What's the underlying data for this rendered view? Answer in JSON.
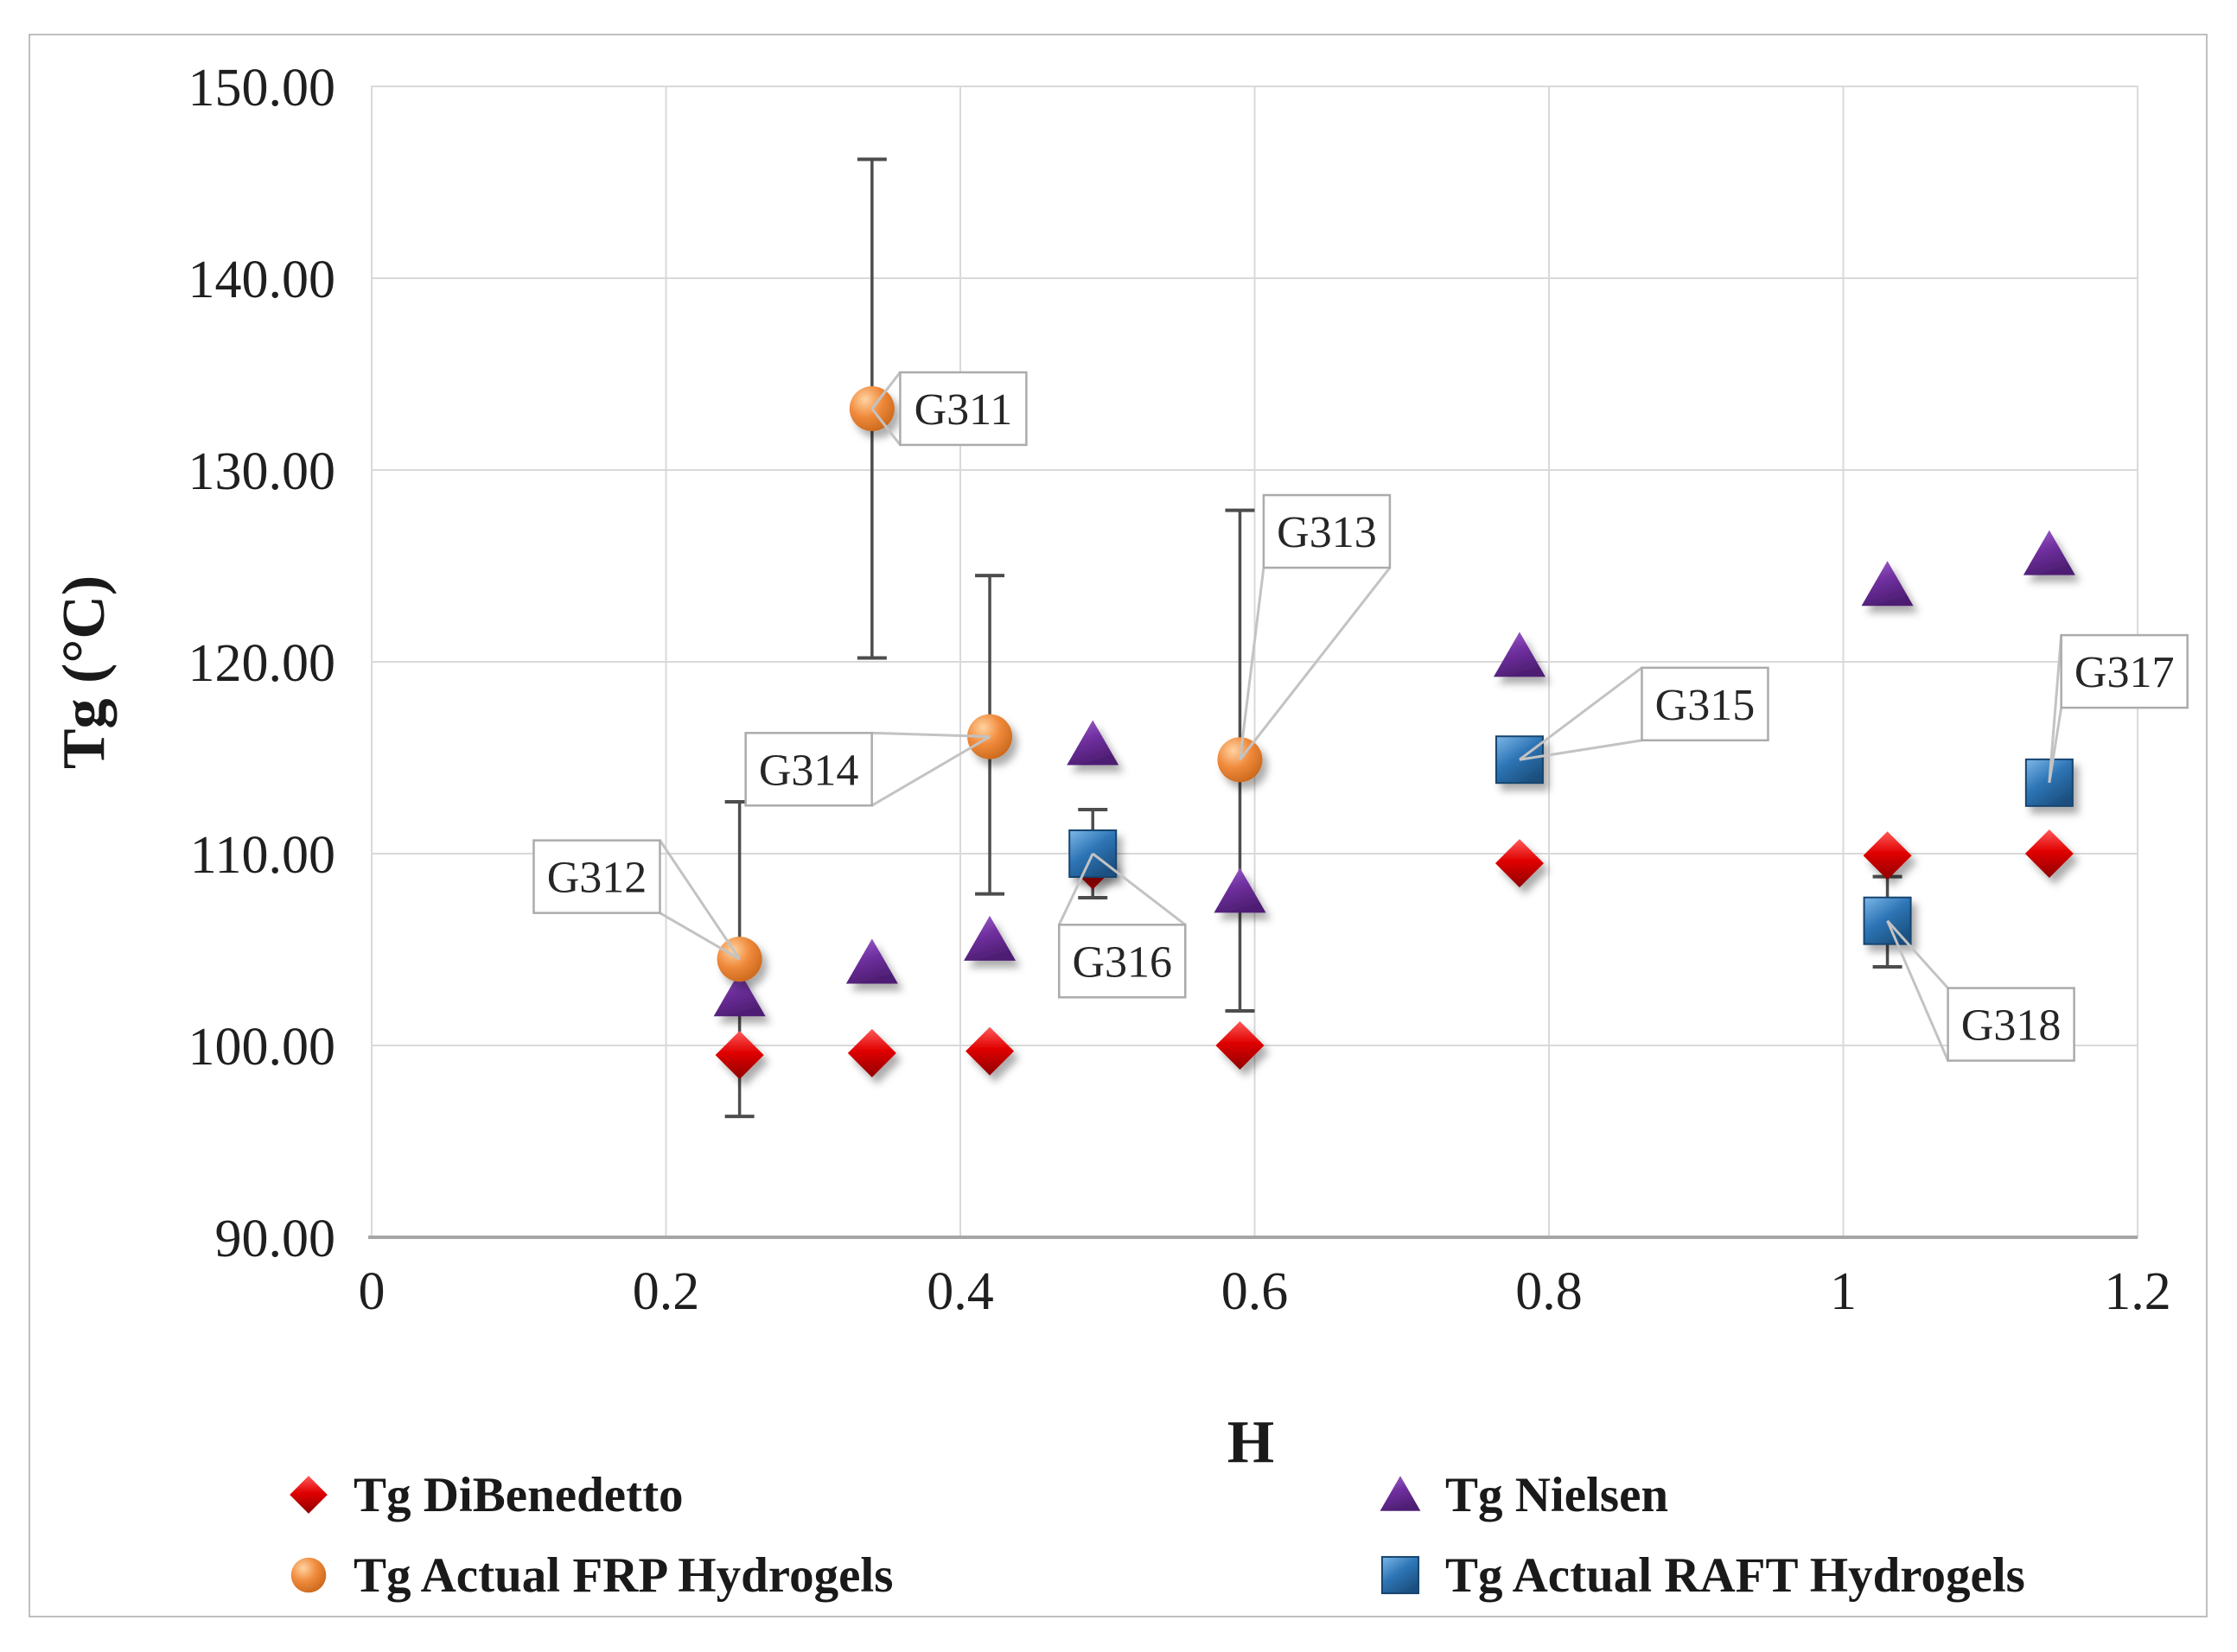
{
  "figure": {
    "background": "#FFFFFF",
    "border_color": "#BFBFBF"
  },
  "chart_data": {
    "type": "scatter",
    "title": "",
    "xlabel": "H",
    "ylabel": "Tg (°C)",
    "xlim": [
      0,
      1.2
    ],
    "ylim": [
      90,
      150
    ],
    "grid": true,
    "gridline_color": "#D9D9D9",
    "axis_line_color": "#A6A6A6",
    "error_bar_color": "#4D4D4D",
    "annotation_border_color": "#ABABAB",
    "x_ticks": [
      {
        "v": 0,
        "label": "0"
      },
      {
        "v": 0.2,
        "label": "0.2"
      },
      {
        "v": 0.4,
        "label": "0.4"
      },
      {
        "v": 0.6,
        "label": "0.6"
      },
      {
        "v": 0.8,
        "label": "0.8"
      },
      {
        "v": 1.0,
        "label": "1"
      },
      {
        "v": 1.2,
        "label": "1.2"
      }
    ],
    "y_ticks": [
      {
        "v": 90,
        "label": "90.00"
      },
      {
        "v": 100,
        "label": "100.00"
      },
      {
        "v": 110,
        "label": "110.00"
      },
      {
        "v": 120,
        "label": "120.00"
      },
      {
        "v": 130,
        "label": "130.00"
      },
      {
        "v": 140,
        "label": "140.00"
      },
      {
        "v": 150,
        "label": "150.00"
      }
    ],
    "series": [
      {
        "name": "Tg DiBenedetto",
        "marker": "diamond",
        "color": "#E00000",
        "points": [
          {
            "x": 0.25,
            "y": 99.5
          },
          {
            "x": 0.34,
            "y": 99.6
          },
          {
            "x": 0.42,
            "y": 99.7
          },
          {
            "x": 0.49,
            "y": 109.4
          },
          {
            "x": 0.59,
            "y": 100.0
          },
          {
            "x": 0.78,
            "y": 109.5
          },
          {
            "x": 1.03,
            "y": 109.9
          },
          {
            "x": 1.14,
            "y": 110.0
          }
        ]
      },
      {
        "name": "Tg Nielsen",
        "marker": "triangle",
        "color": "#7030A0",
        "points": [
          {
            "x": 0.25,
            "y": 102.6
          },
          {
            "x": 0.34,
            "y": 104.3
          },
          {
            "x": 0.42,
            "y": 105.5
          },
          {
            "x": 0.49,
            "y": 115.7
          },
          {
            "x": 0.59,
            "y": 108.0
          },
          {
            "x": 0.78,
            "y": 120.3
          },
          {
            "x": 1.03,
            "y": 124.0
          },
          {
            "x": 1.14,
            "y": 125.6
          }
        ]
      },
      {
        "name": "Tg Actual FRP Hydrogels",
        "marker": "circle",
        "color": "#ED7D31",
        "points": [
          {
            "x": 0.25,
            "y": 104.5,
            "err_low": 96.3,
            "err_high": 112.7,
            "label": "G312",
            "label_box": {
              "x": 0.153,
              "y": 108.8
            }
          },
          {
            "x": 0.34,
            "y": 133.2,
            "err_low": 120.2,
            "err_high": 146.2,
            "label": "G311",
            "label_box": {
              "x": 0.402,
              "y": 133.2
            }
          },
          {
            "x": 0.42,
            "y": 116.1,
            "err_low": 107.9,
            "err_high": 124.5,
            "label": "G314",
            "label_box": {
              "x": 0.297,
              "y": 114.4
            }
          },
          {
            "x": 0.59,
            "y": 114.9,
            "err_low": 101.8,
            "err_high": 127.9,
            "label": "G313",
            "label_box": {
              "x": 0.649,
              "y": 126.8
            }
          }
        ]
      },
      {
        "name": "Tg Actual RAFT Hydrogels",
        "marker": "square",
        "color": "#2E75B6",
        "points": [
          {
            "x": 0.49,
            "y": 110.0,
            "err_low": 107.7,
            "err_high": 112.3,
            "label": "G316",
            "label_box": {
              "x": 0.51,
              "y": 104.4
            }
          },
          {
            "x": 0.78,
            "y": 114.9,
            "label": "G315",
            "label_box": {
              "x": 0.906,
              "y": 117.8
            }
          },
          {
            "x": 1.03,
            "y": 106.5,
            "err_low": 104.1,
            "err_high": 108.8,
            "label": "G318",
            "label_box": {
              "x": 1.114,
              "y": 101.1
            }
          },
          {
            "x": 1.14,
            "y": 113.7,
            "label": "G317",
            "label_box": {
              "x": 1.191,
              "y": 119.5
            }
          }
        ]
      }
    ]
  },
  "legend": {
    "columns": [
      [
        "Tg DiBenedetto",
        "Tg Actual FRP Hydrogels"
      ],
      [
        "Tg Nielsen",
        "Tg Actual RAFT Hydrogels"
      ]
    ]
  }
}
